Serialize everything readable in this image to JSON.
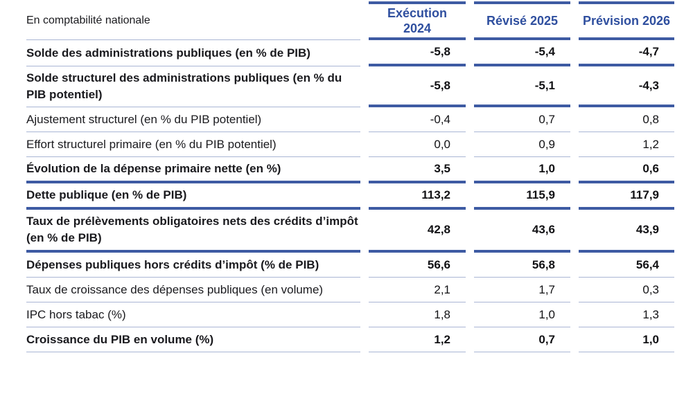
{
  "table": {
    "corner_label": "En comptabilité nationale",
    "columns": [
      "Exécution\n2024",
      "Révisé 2025",
      "Prévision 2026"
    ],
    "rows": [
      {
        "label": "Solde des administrations publiques (en % de PIB)",
        "values": [
          "-5,8",
          "-5,4",
          "-4,7"
        ],
        "bold": true,
        "label_border": "thin",
        "value_border": "thick"
      },
      {
        "label": "Solde structurel des administrations publiques (en % du PIB potentiel)",
        "values": [
          "-5,8",
          "-5,1",
          "-4,3"
        ],
        "bold": true,
        "label_border": "thin",
        "value_border": "thick"
      },
      {
        "label": "Ajustement structurel (en % du PIB potentiel)",
        "values": [
          "-0,4",
          "0,7",
          "0,8"
        ],
        "bold": false,
        "label_border": "thin",
        "value_border": "thin"
      },
      {
        "label": "Effort structurel primaire (en % du PIB potentiel)",
        "values": [
          "0,0",
          "0,9",
          "1,2"
        ],
        "bold": false,
        "label_border": "thin",
        "value_border": "thin"
      },
      {
        "label": "Évolution de la dépense primaire nette (en %)",
        "values": [
          "3,5",
          "1,0",
          "0,6"
        ],
        "bold": true,
        "label_border": "thick",
        "value_border": "thick"
      },
      {
        "label": "Dette publique (en % de PIB)",
        "values": [
          "113,2",
          "115,9",
          "117,9"
        ],
        "bold": true,
        "label_border": "thick",
        "value_border": "thick"
      },
      {
        "label": "Taux de prélèvements obligatoires nets des crédits d’impôt (en % de PIB)",
        "values": [
          "42,8",
          "43,6",
          "43,9"
        ],
        "bold": true,
        "label_border": "thick",
        "value_border": "thick"
      },
      {
        "label": "Dépenses publiques hors crédits d’impôt (% de PIB)",
        "values": [
          "56,6",
          "56,8",
          "56,4"
        ],
        "bold": true,
        "label_border": "thin",
        "value_border": "thin"
      },
      {
        "label": "Taux de croissance des dépenses publiques (en volume)",
        "values": [
          "2,1",
          "1,7",
          "0,3"
        ],
        "bold": false,
        "label_border": "thin",
        "value_border": "thin"
      },
      {
        "label": "IPC hors tabac (%)",
        "values": [
          "1,8",
          "1,0",
          "1,3"
        ],
        "bold": false,
        "label_border": "thin",
        "value_border": "thin"
      },
      {
        "label": "Croissance du PIB en volume (%)",
        "values": [
          "1,2",
          "0,7",
          "1,0"
        ],
        "bold": true,
        "label_border": "thin",
        "value_border": "thin"
      }
    ],
    "colors": {
      "header_text_blue": "#2f4f9f",
      "thick_rule_blue": "#3e5ba3",
      "thin_rule_blue": "#a9b5d4",
      "label_ink": "#1a1a1e"
    }
  },
  "chart_data": {
    "type": "table",
    "title": "En comptabilité nationale",
    "columns": [
      "Exécution 2024",
      "Révisé 2025",
      "Prévision 2026"
    ],
    "row_labels": [
      "Solde des administrations publiques (en % de PIB)",
      "Solde structurel des administrations publiques (en % du PIB potentiel)",
      "Ajustement structurel (en % du PIB potentiel)",
      "Effort structurel primaire (en % du PIB potentiel)",
      "Évolution de la dépense primaire nette (en %)",
      "Dette publique (en % de PIB)",
      "Taux de prélèvements obligatoires nets des crédits d’impôt (en % de PIB)",
      "Dépenses publiques hors crédits d’impôt (% de PIB)",
      "Taux de croissance des dépenses publiques (en volume)",
      "IPC hors tabac (%)",
      "Croissance du PIB en volume (%)"
    ],
    "values": [
      [
        -5.8,
        -5.4,
        -4.7
      ],
      [
        -5.8,
        -5.1,
        -4.3
      ],
      [
        -0.4,
        0.7,
        0.8
      ],
      [
        0.0,
        0.9,
        1.2
      ],
      [
        3.5,
        1.0,
        0.6
      ],
      [
        113.2,
        115.9,
        117.9
      ],
      [
        42.8,
        43.6,
        43.9
      ],
      [
        56.6,
        56.8,
        56.4
      ],
      [
        2.1,
        1.7,
        0.3
      ],
      [
        1.8,
        1.0,
        1.3
      ],
      [
        1.2,
        0.7,
        1.0
      ]
    ]
  }
}
